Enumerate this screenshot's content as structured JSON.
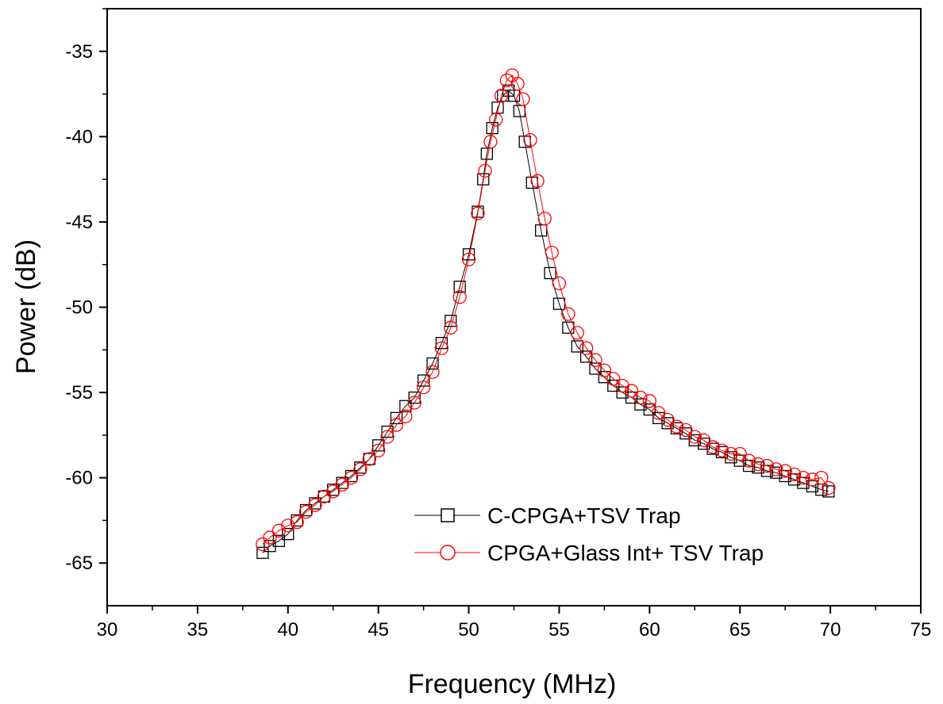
{
  "chart_data": {
    "type": "scatter",
    "title": "",
    "xlabel": "Frequency (MHz)",
    "ylabel": "Power (dB)",
    "xlim": [
      30,
      75
    ],
    "ylim": [
      -67.5,
      -32.5
    ],
    "x_ticks": [
      30,
      35,
      40,
      45,
      50,
      55,
      60,
      65,
      70,
      75
    ],
    "y_ticks": [
      -35,
      -40,
      -45,
      -50,
      -55,
      -60,
      -65
    ],
    "grid": false,
    "legend_position": "bottom-right",
    "series": [
      {
        "name": "C-CPGA+TSV Trap",
        "marker": "square",
        "color": "#000000",
        "points": [
          [
            38.6,
            -64.4
          ],
          [
            39.0,
            -64.0
          ],
          [
            39.5,
            -63.7
          ],
          [
            40.0,
            -63.3
          ],
          [
            40.5,
            -62.5
          ],
          [
            41.0,
            -61.9
          ],
          [
            41.5,
            -61.5
          ],
          [
            42.0,
            -61.1
          ],
          [
            42.5,
            -60.7
          ],
          [
            43.0,
            -60.3
          ],
          [
            43.5,
            -59.9
          ],
          [
            44.0,
            -59.4
          ],
          [
            44.5,
            -58.9
          ],
          [
            45.0,
            -58.1
          ],
          [
            45.5,
            -57.3
          ],
          [
            46.0,
            -56.5
          ],
          [
            46.5,
            -55.8
          ],
          [
            47.0,
            -55.3
          ],
          [
            47.5,
            -54.3
          ],
          [
            48.0,
            -53.3
          ],
          [
            48.5,
            -52.1
          ],
          [
            49.0,
            -50.8
          ],
          [
            49.5,
            -48.8
          ],
          [
            50.0,
            -46.9
          ],
          [
            50.5,
            -44.4
          ],
          [
            50.8,
            -42.5
          ],
          [
            51.0,
            -41.0
          ],
          [
            51.3,
            -39.5
          ],
          [
            51.6,
            -38.3
          ],
          [
            51.9,
            -37.6
          ],
          [
            52.2,
            -37.3
          ],
          [
            52.5,
            -37.6
          ],
          [
            52.8,
            -38.5
          ],
          [
            53.1,
            -40.3
          ],
          [
            53.5,
            -42.7
          ],
          [
            54.0,
            -45.5
          ],
          [
            54.5,
            -48.0
          ],
          [
            55.0,
            -49.8
          ],
          [
            55.5,
            -51.2
          ],
          [
            56.0,
            -52.3
          ],
          [
            56.5,
            -52.9
          ],
          [
            57.0,
            -53.6
          ],
          [
            57.5,
            -54.1
          ],
          [
            58.0,
            -54.6
          ],
          [
            58.5,
            -55.0
          ],
          [
            59.0,
            -55.3
          ],
          [
            59.5,
            -55.7
          ],
          [
            60.0,
            -56.0
          ],
          [
            60.5,
            -56.5
          ],
          [
            61.0,
            -56.8
          ],
          [
            61.5,
            -57.1
          ],
          [
            62.0,
            -57.4
          ],
          [
            62.5,
            -57.8
          ],
          [
            63.0,
            -58.0
          ],
          [
            63.5,
            -58.3
          ],
          [
            64.0,
            -58.5
          ],
          [
            64.5,
            -58.8
          ],
          [
            65.0,
            -59.0
          ],
          [
            65.5,
            -59.3
          ],
          [
            66.0,
            -59.4
          ],
          [
            66.5,
            -59.6
          ],
          [
            67.0,
            -59.7
          ],
          [
            67.5,
            -59.9
          ],
          [
            68.0,
            -60.1
          ],
          [
            68.5,
            -60.3
          ],
          [
            69.0,
            -60.5
          ],
          [
            69.5,
            -60.7
          ],
          [
            69.9,
            -60.8
          ]
        ]
      },
      {
        "name": "CPGA+Glass Int+ TSV Trap",
        "marker": "circle",
        "color": "#ff0000",
        "points": [
          [
            38.6,
            -63.9
          ],
          [
            39.0,
            -63.5
          ],
          [
            39.5,
            -63.1
          ],
          [
            40.0,
            -62.8
          ],
          [
            40.5,
            -62.6
          ],
          [
            41.0,
            -62.0
          ],
          [
            41.5,
            -61.6
          ],
          [
            42.0,
            -61.1
          ],
          [
            42.5,
            -60.8
          ],
          [
            43.0,
            -60.4
          ],
          [
            43.5,
            -60.0
          ],
          [
            44.0,
            -59.5
          ],
          [
            44.5,
            -58.9
          ],
          [
            45.0,
            -58.4
          ],
          [
            45.5,
            -57.6
          ],
          [
            46.0,
            -56.9
          ],
          [
            46.5,
            -56.4
          ],
          [
            47.0,
            -55.6
          ],
          [
            47.5,
            -54.7
          ],
          [
            48.0,
            -53.8
          ],
          [
            48.5,
            -52.4
          ],
          [
            49.0,
            -51.2
          ],
          [
            49.5,
            -49.4
          ],
          [
            50.0,
            -47.2
          ],
          [
            50.5,
            -44.5
          ],
          [
            50.9,
            -42.0
          ],
          [
            51.2,
            -40.3
          ],
          [
            51.5,
            -39.0
          ],
          [
            51.8,
            -37.6
          ],
          [
            52.1,
            -36.7
          ],
          [
            52.4,
            -36.4
          ],
          [
            52.7,
            -36.9
          ],
          [
            53.0,
            -37.8
          ],
          [
            53.4,
            -40.2
          ],
          [
            53.8,
            -42.6
          ],
          [
            54.2,
            -44.8
          ],
          [
            54.6,
            -46.8
          ],
          [
            55.0,
            -48.6
          ],
          [
            55.5,
            -50.4
          ],
          [
            56.0,
            -51.5
          ],
          [
            56.5,
            -52.4
          ],
          [
            57.0,
            -53.1
          ],
          [
            57.5,
            -53.7
          ],
          [
            58.0,
            -54.2
          ],
          [
            58.5,
            -54.6
          ],
          [
            59.0,
            -54.9
          ],
          [
            59.5,
            -55.3
          ],
          [
            60.0,
            -55.5
          ],
          [
            60.5,
            -56.2
          ],
          [
            61.0,
            -56.6
          ],
          [
            61.5,
            -57.0
          ],
          [
            62.0,
            -57.2
          ],
          [
            62.5,
            -57.6
          ],
          [
            63.0,
            -57.8
          ],
          [
            63.5,
            -58.2
          ],
          [
            64.0,
            -58.4
          ],
          [
            64.5,
            -58.6
          ],
          [
            65.0,
            -58.6
          ],
          [
            65.5,
            -59.0
          ],
          [
            66.0,
            -59.2
          ],
          [
            66.5,
            -59.3
          ],
          [
            67.0,
            -59.5
          ],
          [
            67.5,
            -59.6
          ],
          [
            68.0,
            -59.8
          ],
          [
            68.5,
            -60.0
          ],
          [
            69.0,
            -60.1
          ],
          [
            69.5,
            -60.0
          ],
          [
            69.9,
            -60.6
          ]
        ]
      }
    ]
  }
}
